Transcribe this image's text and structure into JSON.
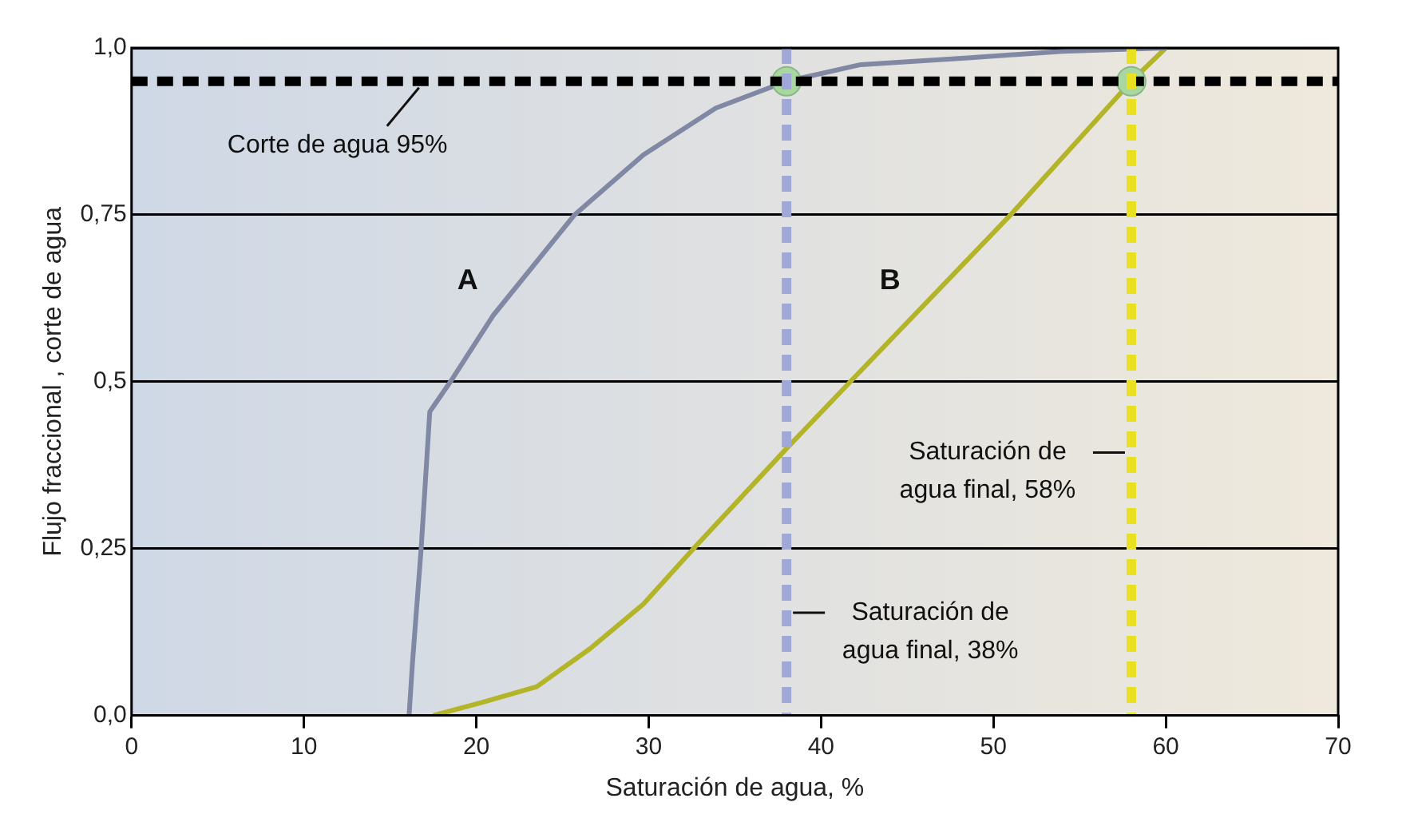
{
  "chart_data": {
    "type": "line",
    "xlabel": "Saturación de agua, %",
    "ylabel": "Flujo fraccional , corte de agua",
    "xlim": [
      0,
      70
    ],
    "xticks": [
      0,
      10,
      20,
      30,
      40,
      50,
      60,
      70
    ],
    "ylim": [
      0,
      1
    ],
    "yticks": [
      {
        "value": 0,
        "label": "0,0"
      },
      {
        "value": 0.25,
        "label": "0,25"
      },
      {
        "value": 0.5,
        "label": "0,5"
      },
      {
        "value": 0.75,
        "label": "0,75"
      },
      {
        "value": 1,
        "label": "1,0"
      }
    ],
    "grid": "y",
    "legend": false,
    "marker": "none",
    "line_style": "solid",
    "series": [
      {
        "name": "A",
        "color": "#8088a4",
        "x": [
          16.1,
          16.3,
          16.8,
          17.3,
          18.5,
          21.0,
          25.7,
          29.7,
          33.9,
          38.0,
          42.3,
          48.5,
          54.0,
          60.0
        ],
        "values": [
          0,
          0.08,
          0.25,
          0.455,
          0.5,
          0.6,
          0.75,
          0.84,
          0.91,
          0.95,
          0.975,
          0.985,
          0.995,
          1.0
        ]
      },
      {
        "name": "B",
        "color": "#b4b428",
        "x": [
          17.5,
          20.4,
          23.5,
          26.6,
          29.7,
          32.6,
          38.0,
          41.7,
          51.0,
          58.0,
          60.0
        ],
        "values": [
          0,
          0.02,
          0.043,
          0.1,
          0.167,
          0.25,
          0.4,
          0.5,
          0.75,
          0.95,
          1.0
        ]
      },
      {
        "type": "scatter",
        "marker": "circle",
        "color": "#a8d8a0",
        "x": [
          38,
          58
        ],
        "values": [
          0.95,
          0.95
        ]
      }
    ],
    "ref_lines": [
      {
        "axis": "y",
        "value": 0.95,
        "label": "Corte de agua 95%",
        "color": "#000000",
        "line_style": "dashed"
      },
      {
        "axis": "x",
        "value": 38,
        "label": "Saturación de agua final, 38%",
        "color": "#a0a8d8",
        "line_style": "dashed"
      },
      {
        "axis": "x",
        "value": 58,
        "label": "Saturación de agua final, 58%",
        "color": "#e8e020",
        "line_style": "dashed"
      }
    ]
  }
}
